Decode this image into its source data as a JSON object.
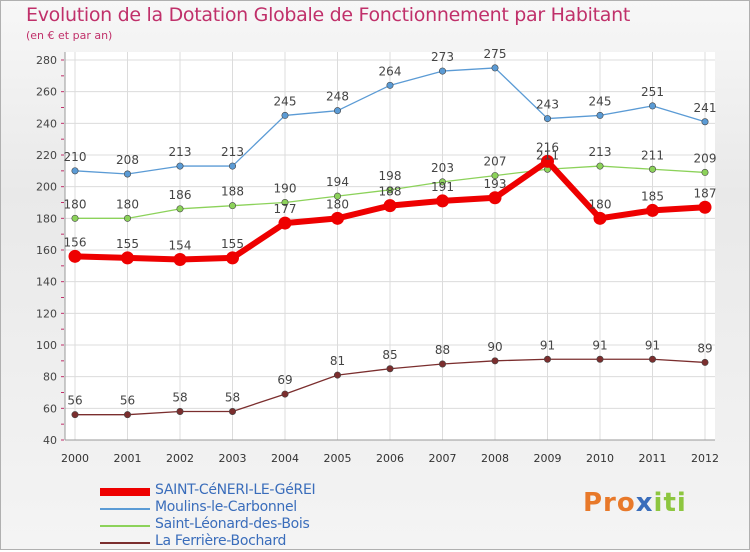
{
  "title": "Evolution de la Dotation Globale de Fonctionnement par Habitant",
  "subtitle": "(en € et par an)",
  "logo": {
    "text": "Proxiti",
    "parts": [
      "Pro",
      "x",
      "iti"
    ]
  },
  "chart_data": {
    "type": "line",
    "categories": [
      "2000",
      "2001",
      "2002",
      "2003",
      "2004",
      "2005",
      "2006",
      "2007",
      "2008",
      "2009",
      "2010",
      "2011",
      "2012"
    ],
    "ylim": [
      40,
      280
    ],
    "yticks": [
      "40",
      "60",
      "80",
      "100",
      "120",
      "140",
      "160",
      "180",
      "200",
      "220",
      "240",
      "260",
      "280"
    ],
    "grid": true,
    "series": [
      {
        "name": "Moulins-le-Carbonnel",
        "color": "#5b9bd5",
        "values": [
          210,
          208,
          213,
          213,
          245,
          248,
          264,
          273,
          275,
          243,
          245,
          251,
          241
        ],
        "labels": [
          "210",
          "208",
          "213",
          "213",
          "245",
          "248",
          "264",
          "273",
          "275",
          "243",
          "245",
          "251",
          "241"
        ]
      },
      {
        "name": "Saint-Léonard-des-Bois",
        "color": "#8cd25a",
        "values": [
          180,
          180,
          186,
          188,
          190,
          194,
          198,
          203,
          207,
          211,
          213,
          211,
          209
        ],
        "labels": [
          "180",
          "180",
          "186",
          "188",
          "190",
          "194",
          "198",
          "203",
          "207",
          "211",
          "213",
          "211",
          "209"
        ]
      },
      {
        "name": "La Ferrière-Bochard",
        "color": "#7b2e2e",
        "values": [
          56,
          56,
          58,
          58,
          69,
          81,
          85,
          88,
          90,
          91,
          91,
          91,
          89
        ],
        "labels": [
          "56",
          "56",
          "58",
          "58",
          "69",
          "81",
          "85",
          "88",
          "90",
          "91",
          "91",
          "91",
          "89"
        ]
      },
      {
        "name": "SAINT-CéNERI-LE-GéREI",
        "color": "#ee0000",
        "values": [
          156,
          155,
          154,
          155,
          177,
          180,
          188,
          191,
          193,
          216,
          180,
          185,
          187
        ],
        "labels": [
          "156",
          "155",
          "154",
          "155",
          "177",
          "180",
          "188",
          "191",
          "193",
          "216",
          "180",
          "185",
          "187"
        ]
      }
    ]
  },
  "legend": [
    {
      "name": "SAINT-CéNERI-LE-GéREI",
      "color": "#ee0000"
    },
    {
      "name": "Moulins-le-Carbonnel",
      "color": "#5b9bd5"
    },
    {
      "name": "Saint-Léonard-des-Bois",
      "color": "#8cd25a"
    },
    {
      "name": "La Ferrière-Bochard",
      "color": "#7b2e2e"
    }
  ]
}
